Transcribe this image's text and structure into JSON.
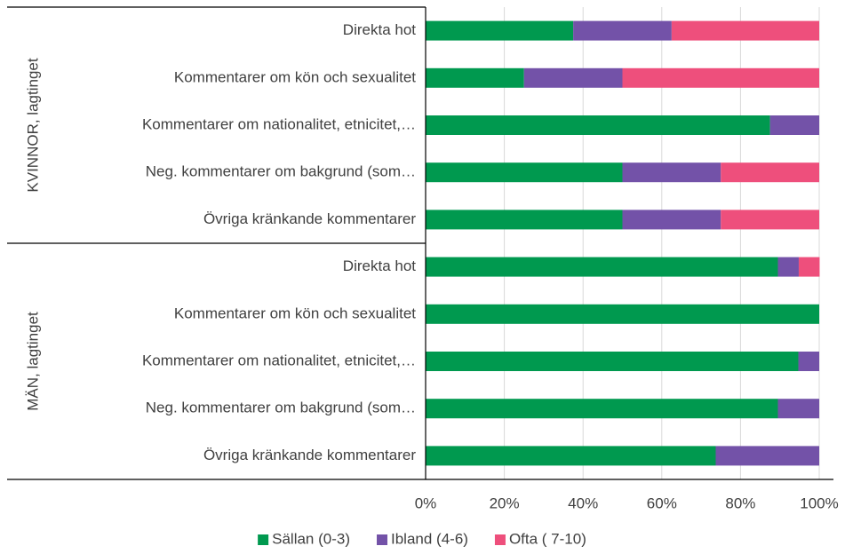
{
  "chart_data": {
    "type": "stacked_barh",
    "categories": [
      "Direkta hot",
      "Kommentarer om kön och sexualitet",
      "Kommentarer om nationalitet, etnicitet,…",
      "Neg. kommentarer om bakgrund (som…",
      "Övriga kränkande kommentarer",
      "Direkta hot",
      "Kommentarer om kön och sexualitet",
      "Kommentarer om nationalitet, etnicitet,…",
      "Neg. kommentarer om bakgrund (som…",
      "Övriga kränkande kommentarer"
    ],
    "groups": [
      "KVINNOR, lagtinget",
      "MÄN, lagtinget"
    ],
    "series": [
      {
        "name": "Sällan (0-3)",
        "color": "#00994f",
        "values": [
          37.5,
          25,
          87.5,
          50,
          50,
          89.5,
          100,
          94.7,
          89.5,
          73.7
        ]
      },
      {
        "name": "Ibland (4-6)",
        "color": "#7352a8",
        "values": [
          25,
          25,
          12.5,
          25,
          25,
          5.3,
          0,
          5.3,
          10.5,
          26.3
        ]
      },
      {
        "name": "Ofta ( 7-10)",
        "color": "#ee4f7c",
        "values": [
          37.5,
          50,
          0,
          25,
          25,
          5.3,
          0,
          0,
          0,
          0
        ]
      }
    ],
    "xlim": [
      0,
      100
    ],
    "xticks": [
      {
        "value": 0,
        "label": "0%"
      },
      {
        "value": 20,
        "label": "20%"
      },
      {
        "value": 40,
        "label": "40%"
      },
      {
        "value": 60,
        "label": "60%"
      },
      {
        "value": 80,
        "label": "80%"
      },
      {
        "value": 100,
        "label": "100%"
      }
    ],
    "grid": true,
    "legend": "bottom"
  }
}
